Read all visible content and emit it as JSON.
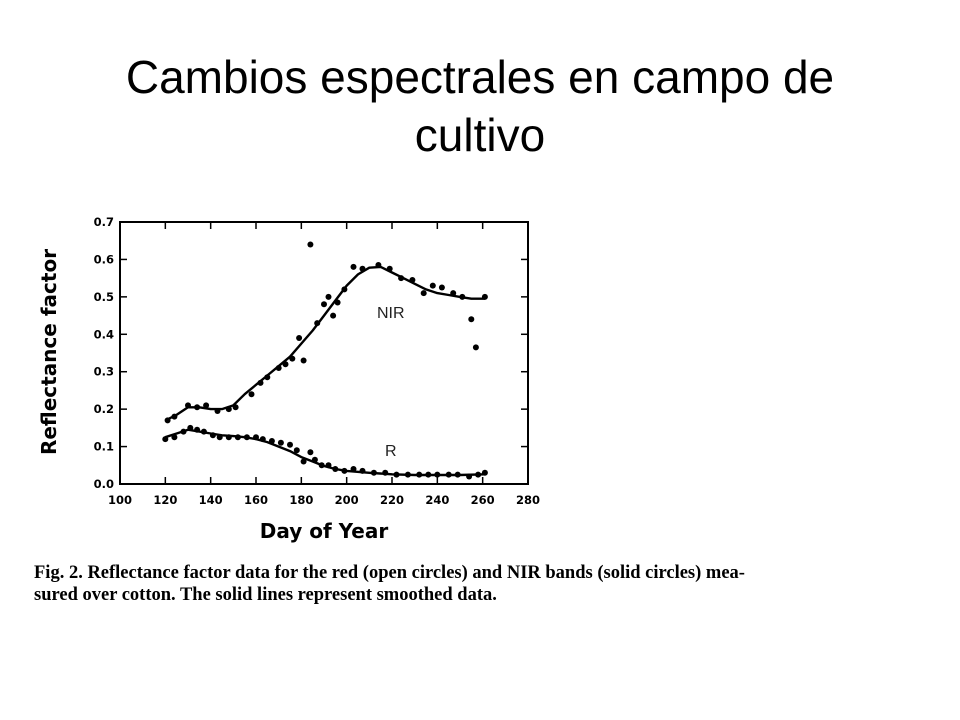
{
  "slide": {
    "title_line1": "Cambios espectrales en campo de",
    "title_line2": "cultivo"
  },
  "caption": {
    "line1": "Fig. 2. Reflectance factor data for the red (open circles) and NIR bands (solid circles) mea-",
    "line2": "sured over cotton. The solid lines represent smoothed data."
  },
  "chart_data": {
    "type": "scatter",
    "xlabel": "Day of Year",
    "ylabel": "Reflectance factor",
    "xlim": [
      100,
      280
    ],
    "ylim": [
      0.0,
      0.7
    ],
    "x_ticks": [
      "100",
      "120",
      "140",
      "160",
      "180",
      "200",
      "220",
      "240",
      "260",
      "280"
    ],
    "y_ticks": [
      "0.0",
      "0.1",
      "0.2",
      "0.3",
      "0.4",
      "0.5",
      "0.6",
      "0.7"
    ],
    "series": [
      {
        "name": "NIR",
        "points": [
          [
            121,
            0.17
          ],
          [
            124,
            0.18
          ],
          [
            130,
            0.21
          ],
          [
            134,
            0.205
          ],
          [
            138,
            0.21
          ],
          [
            143,
            0.195
          ],
          [
            148,
            0.2
          ],
          [
            151,
            0.205
          ],
          [
            158,
            0.24
          ],
          [
            162,
            0.27
          ],
          [
            165,
            0.285
          ],
          [
            170,
            0.31
          ],
          [
            173,
            0.32
          ],
          [
            176,
            0.335
          ],
          [
            179,
            0.39
          ],
          [
            181,
            0.33
          ],
          [
            184,
            0.64
          ],
          [
            187,
            0.43
          ],
          [
            190,
            0.48
          ],
          [
            192,
            0.5
          ],
          [
            194,
            0.45
          ],
          [
            196,
            0.485
          ],
          [
            199,
            0.52
          ],
          [
            203,
            0.58
          ],
          [
            207,
            0.575
          ],
          [
            214,
            0.585
          ],
          [
            219,
            0.575
          ],
          [
            224,
            0.55
          ],
          [
            229,
            0.545
          ],
          [
            234,
            0.51
          ],
          [
            238,
            0.53
          ],
          [
            242,
            0.525
          ],
          [
            247,
            0.51
          ],
          [
            251,
            0.5
          ],
          [
            255,
            0.44
          ],
          [
            257,
            0.365
          ],
          [
            261,
            0.5
          ]
        ],
        "smoothed": [
          [
            120,
            0.17
          ],
          [
            125,
            0.185
          ],
          [
            130,
            0.205
          ],
          [
            135,
            0.205
          ],
          [
            140,
            0.2
          ],
          [
            145,
            0.2
          ],
          [
            150,
            0.21
          ],
          [
            155,
            0.24
          ],
          [
            160,
            0.265
          ],
          [
            165,
            0.29
          ],
          [
            170,
            0.315
          ],
          [
            175,
            0.34
          ],
          [
            180,
            0.375
          ],
          [
            185,
            0.41
          ],
          [
            190,
            0.45
          ],
          [
            195,
            0.49
          ],
          [
            200,
            0.53
          ],
          [
            205,
            0.56
          ],
          [
            210,
            0.578
          ],
          [
            215,
            0.58
          ],
          [
            220,
            0.565
          ],
          [
            225,
            0.55
          ],
          [
            230,
            0.535
          ],
          [
            235,
            0.52
          ],
          [
            240,
            0.51
          ],
          [
            245,
            0.505
          ],
          [
            250,
            0.5
          ],
          [
            255,
            0.495
          ],
          [
            261,
            0.495
          ]
        ]
      },
      {
        "name": "R",
        "points": [
          [
            120,
            0.12
          ],
          [
            124,
            0.125
          ],
          [
            128,
            0.14
          ],
          [
            131,
            0.15
          ],
          [
            134,
            0.145
          ],
          [
            137,
            0.14
          ],
          [
            141,
            0.13
          ],
          [
            144,
            0.125
          ],
          [
            148,
            0.125
          ],
          [
            152,
            0.125
          ],
          [
            156,
            0.125
          ],
          [
            160,
            0.125
          ],
          [
            163,
            0.12
          ],
          [
            167,
            0.115
          ],
          [
            171,
            0.11
          ],
          [
            175,
            0.105
          ],
          [
            178,
            0.09
          ],
          [
            181,
            0.06
          ],
          [
            184,
            0.085
          ],
          [
            186,
            0.065
          ],
          [
            189,
            0.05
          ],
          [
            192,
            0.05
          ],
          [
            195,
            0.04
          ],
          [
            199,
            0.035
          ],
          [
            203,
            0.04
          ],
          [
            207,
            0.035
          ],
          [
            212,
            0.03
          ],
          [
            217,
            0.03
          ],
          [
            222,
            0.025
          ],
          [
            227,
            0.025
          ],
          [
            232,
            0.025
          ],
          [
            236,
            0.025
          ],
          [
            240,
            0.025
          ],
          [
            245,
            0.025
          ],
          [
            249,
            0.025
          ],
          [
            254,
            0.02
          ],
          [
            258,
            0.025
          ],
          [
            261,
            0.03
          ]
        ],
        "smoothed": [
          [
            120,
            0.125
          ],
          [
            125,
            0.135
          ],
          [
            130,
            0.145
          ],
          [
            135,
            0.14
          ],
          [
            140,
            0.135
          ],
          [
            145,
            0.13
          ],
          [
            150,
            0.128
          ],
          [
            155,
            0.125
          ],
          [
            160,
            0.12
          ],
          [
            165,
            0.112
          ],
          [
            170,
            0.1
          ],
          [
            175,
            0.088
          ],
          [
            180,
            0.072
          ],
          [
            185,
            0.06
          ],
          [
            190,
            0.048
          ],
          [
            195,
            0.04
          ],
          [
            200,
            0.035
          ],
          [
            210,
            0.03
          ],
          [
            220,
            0.026
          ],
          [
            230,
            0.024
          ],
          [
            240,
            0.024
          ],
          [
            250,
            0.024
          ],
          [
            261,
            0.026
          ]
        ]
      }
    ]
  }
}
